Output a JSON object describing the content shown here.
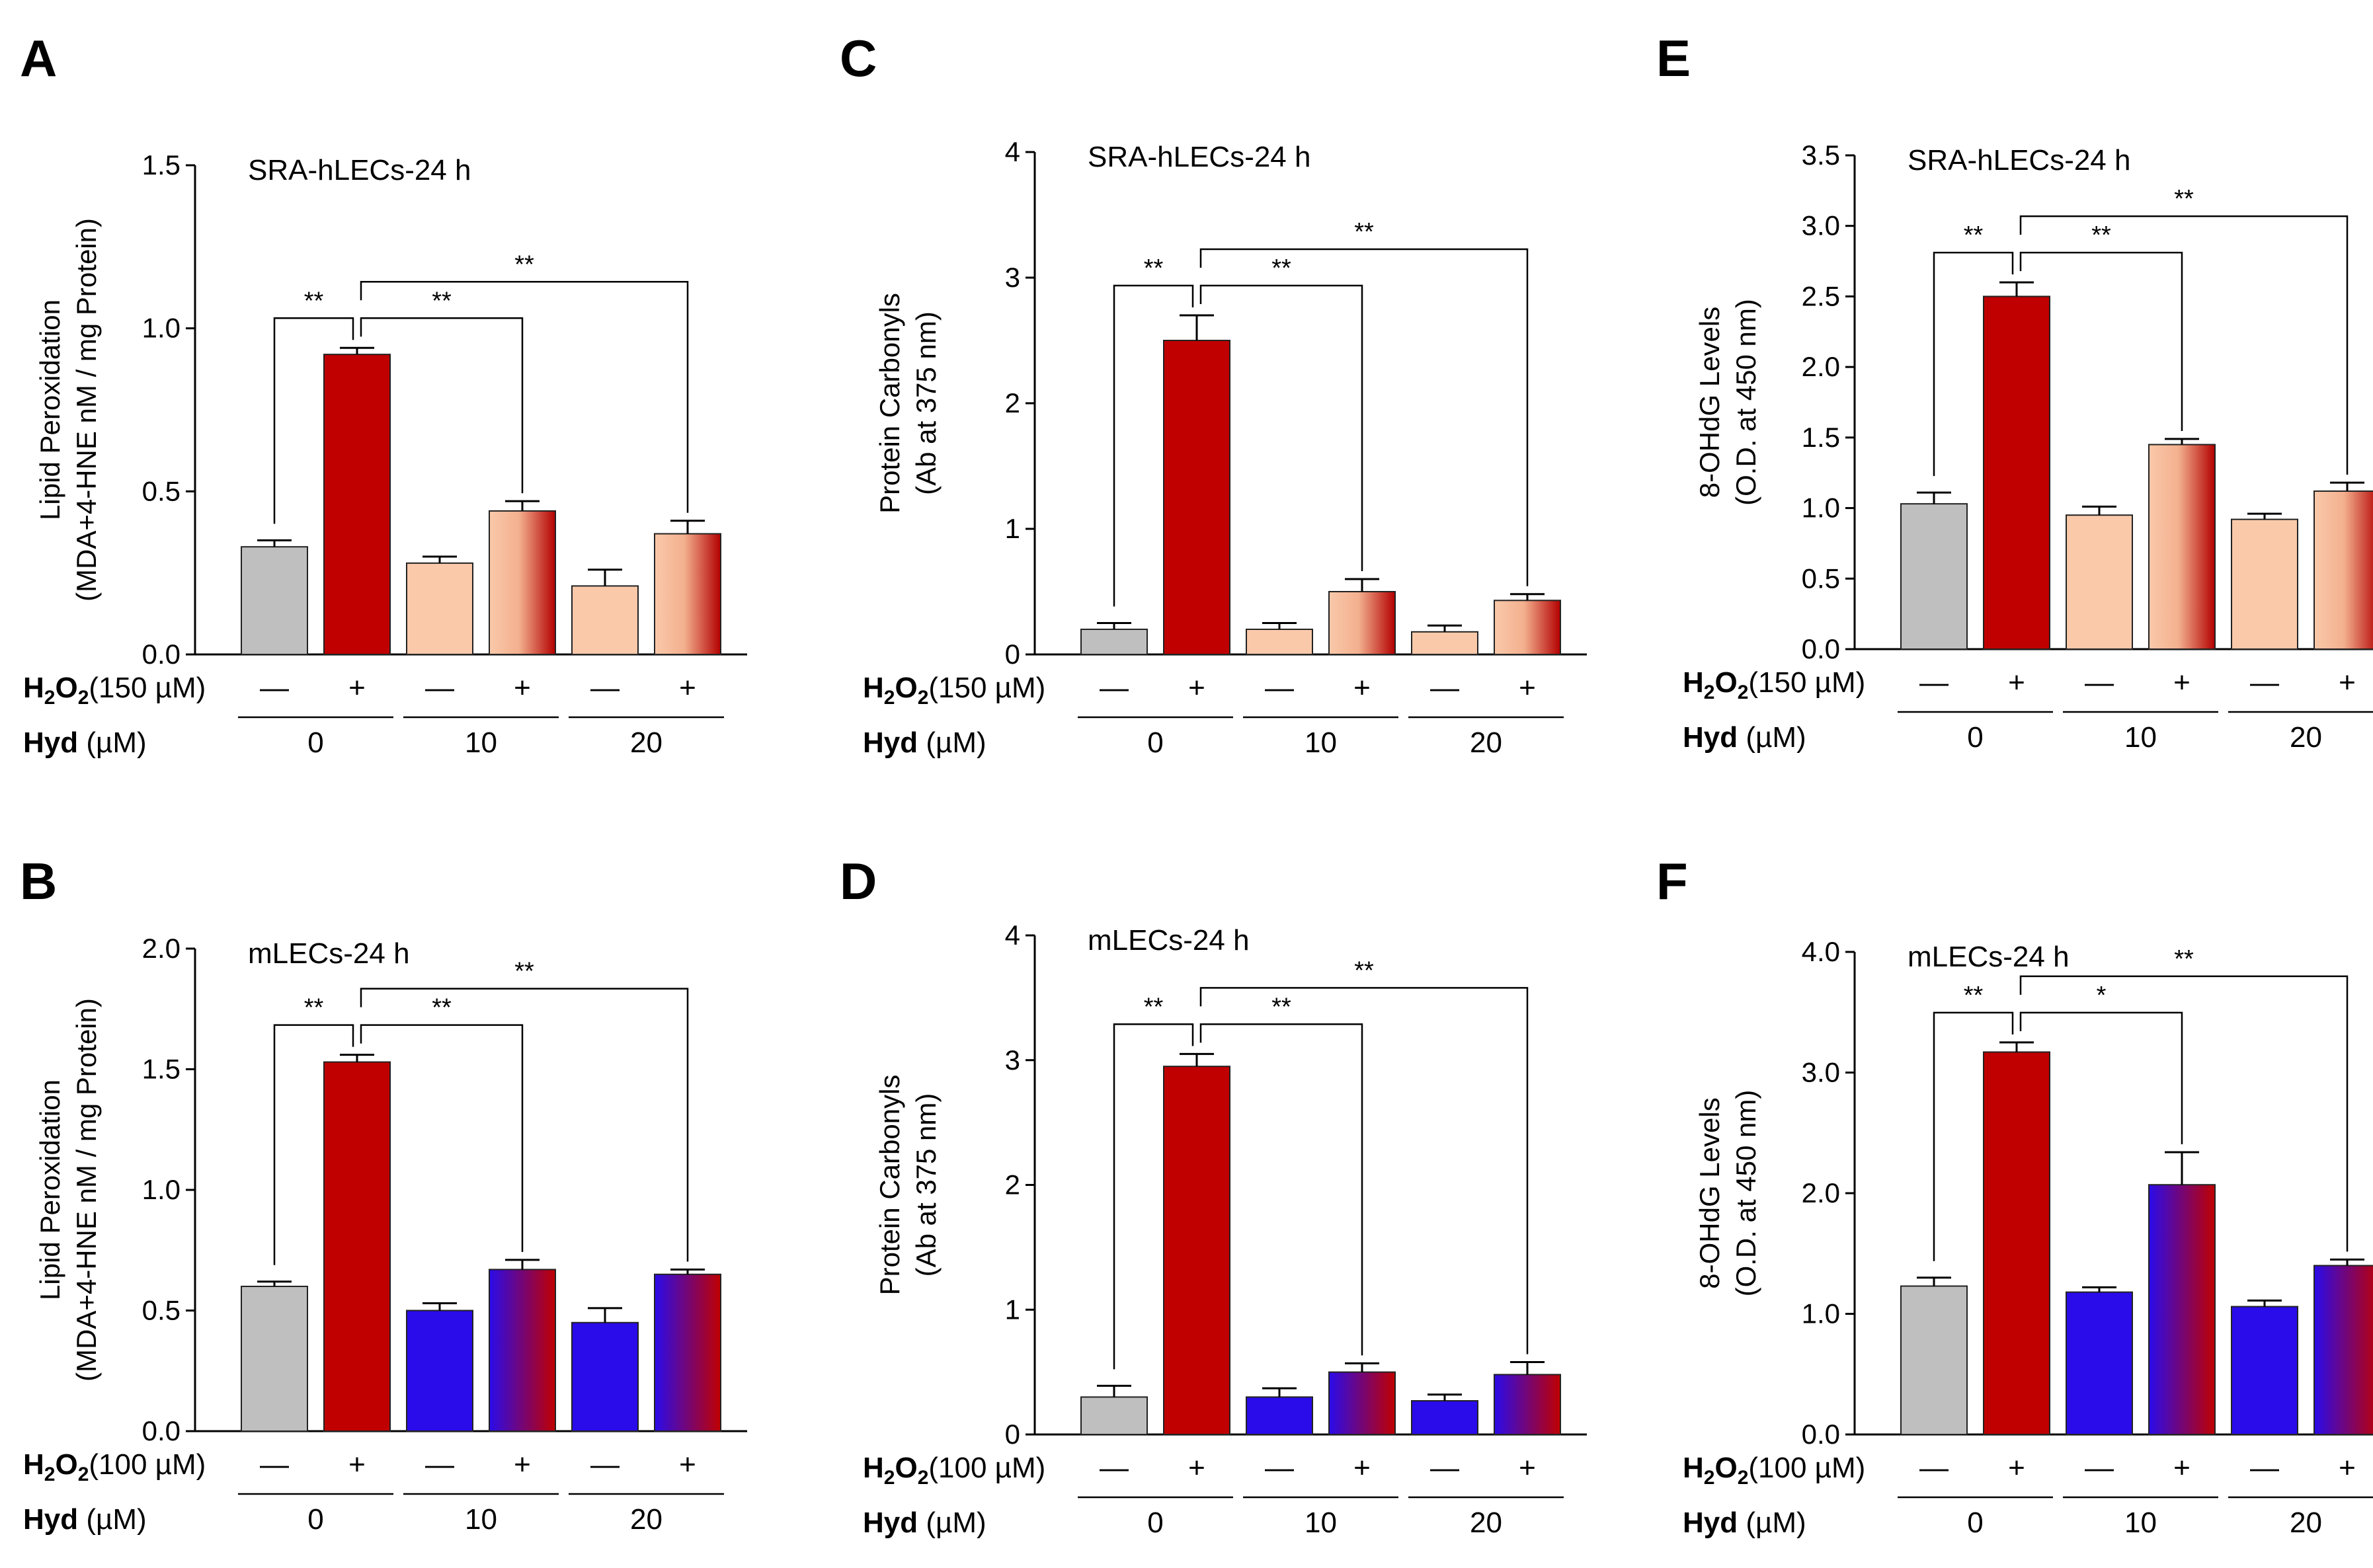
{
  "colors": {
    "gray": "#bfbfbf",
    "red": "#c00000",
    "peach": "#f9c9aa",
    "blue": "#2a0bea",
    "axis": "#000000"
  },
  "treatment_labels": {
    "h2o2_bold": "H",
    "h2o2_sub": "2",
    "h2o2_o": "O",
    "hyd_bold": "Hyd",
    "hyd_unit": "(µM)",
    "minus": "—",
    "plus": "+"
  },
  "chart_data": [
    {
      "id": "A",
      "type": "bar",
      "title": "SRA-hLECs-24 h",
      "ylabel": [
        "Lipid Peroxidation",
        "(MDA+4-HNE nM / mg Protein)"
      ],
      "ylim": [
        0,
        1.5
      ],
      "yticks": [
        "0.0",
        "0.5",
        "1.0",
        "1.5"
      ],
      "h2o2_dose": "(150 µM)",
      "hyd_doses": [
        "0",
        "10",
        "20"
      ],
      "h2o2": [
        "—",
        "+",
        "—",
        "+",
        "—",
        "+"
      ],
      "values": [
        0.33,
        0.92,
        0.28,
        0.44,
        0.21,
        0.37
      ],
      "errors": [
        0.02,
        0.02,
        0.02,
        0.03,
        0.05,
        0.04
      ],
      "fills": [
        "gray",
        "red",
        "peach",
        "grad-peach",
        "peach",
        "grad-peach"
      ],
      "significance": [
        {
          "from": 0,
          "to": 1,
          "label": "**"
        },
        {
          "from": 1,
          "to": 3,
          "label": "**"
        },
        {
          "from": 1,
          "to": 5,
          "label": "**"
        }
      ]
    },
    {
      "id": "C",
      "type": "bar",
      "title": "SRA-hLECs-24 h",
      "ylabel": [
        "Protein Carbonyls",
        "(Ab at 375 nm)"
      ],
      "ylim": [
        0,
        4
      ],
      "yticks": [
        "0",
        "1",
        "2",
        "3",
        "4"
      ],
      "h2o2_dose": "(150 µM)",
      "hyd_doses": [
        "0",
        "10",
        "20"
      ],
      "h2o2": [
        "—",
        "+",
        "—",
        "+",
        "—",
        "+"
      ],
      "values": [
        0.2,
        2.5,
        0.2,
        0.5,
        0.18,
        0.43
      ],
      "errors": [
        0.05,
        0.2,
        0.05,
        0.1,
        0.05,
        0.05
      ],
      "fills": [
        "gray",
        "red",
        "peach",
        "grad-peach",
        "peach",
        "grad-peach"
      ],
      "significance": [
        {
          "from": 0,
          "to": 1,
          "label": "**"
        },
        {
          "from": 1,
          "to": 3,
          "label": "**"
        },
        {
          "from": 1,
          "to": 5,
          "label": "**"
        }
      ]
    },
    {
      "id": "E",
      "type": "bar",
      "title": "SRA-hLECs-24 h",
      "ylabel": [
        "8-OHdG Levels",
        "(O.D. at 450 nm)"
      ],
      "ylim": [
        0,
        3.5
      ],
      "yticks": [
        "0.0",
        "0.5",
        "1.0",
        "1.5",
        "2.0",
        "2.5",
        "3.0",
        "3.5"
      ],
      "h2o2_dose": "(150 µM)",
      "hyd_doses": [
        "0",
        "10",
        "20"
      ],
      "h2o2": [
        "—",
        "+",
        "—",
        "+",
        "—",
        "+"
      ],
      "values": [
        1.03,
        2.5,
        0.95,
        1.45,
        0.92,
        1.12
      ],
      "errors": [
        0.08,
        0.1,
        0.06,
        0.04,
        0.04,
        0.06
      ],
      "fills": [
        "gray",
        "red",
        "peach",
        "grad-peach",
        "peach",
        "grad-peach"
      ],
      "significance": [
        {
          "from": 0,
          "to": 1,
          "label": "**"
        },
        {
          "from": 1,
          "to": 3,
          "label": "**"
        },
        {
          "from": 1,
          "to": 5,
          "label": "**"
        }
      ]
    },
    {
      "id": "B",
      "type": "bar",
      "title": "mLECs-24 h",
      "ylabel": [
        "Lipid Peroxidation",
        "(MDA+4-HNE nM / mg Protein)"
      ],
      "ylim": [
        0,
        2.0
      ],
      "yticks": [
        "0.0",
        "0.5",
        "1.0",
        "1.5",
        "2.0"
      ],
      "h2o2_dose": "(100 µM)",
      "hyd_doses": [
        "0",
        "10",
        "20"
      ],
      "h2o2": [
        "—",
        "+",
        "—",
        "+",
        "—",
        "+"
      ],
      "values": [
        0.6,
        1.53,
        0.5,
        0.67,
        0.45,
        0.65
      ],
      "errors": [
        0.02,
        0.03,
        0.03,
        0.04,
        0.06,
        0.02
      ],
      "fills": [
        "gray",
        "red",
        "blue",
        "grad-blue",
        "blue",
        "grad-blue"
      ],
      "significance": [
        {
          "from": 0,
          "to": 1,
          "label": "**"
        },
        {
          "from": 1,
          "to": 3,
          "label": "**"
        },
        {
          "from": 1,
          "to": 5,
          "label": "**"
        }
      ]
    },
    {
      "id": "D",
      "type": "bar",
      "title": "mLECs-24 h",
      "ylabel": [
        "Protein Carbonyls",
        "(Ab at 375 nm)"
      ],
      "ylim": [
        0,
        4
      ],
      "yticks": [
        "0",
        "1",
        "2",
        "3",
        "4"
      ],
      "h2o2_dose": "(100 µM)",
      "hyd_doses": [
        "0",
        "10",
        "20"
      ],
      "h2o2": [
        "—",
        "+",
        "—",
        "+",
        "—",
        "+"
      ],
      "values": [
        0.3,
        2.95,
        0.3,
        0.5,
        0.27,
        0.48
      ],
      "errors": [
        0.09,
        0.1,
        0.07,
        0.07,
        0.05,
        0.1
      ],
      "fills": [
        "gray",
        "red",
        "blue",
        "grad-blue",
        "blue",
        "grad-blue"
      ],
      "significance": [
        {
          "from": 0,
          "to": 1,
          "label": "**"
        },
        {
          "from": 1,
          "to": 3,
          "label": "**"
        },
        {
          "from": 1,
          "to": 5,
          "label": "**"
        }
      ]
    },
    {
      "id": "F",
      "type": "bar",
      "title": "mLECs-24 h",
      "ylabel": [
        "8-OHdG Levels",
        "(O.D. at 450 nm)"
      ],
      "ylim": [
        0,
        4.0
      ],
      "yticks": [
        "0.0",
        "1.0",
        "2.0",
        "3.0",
        "4.0"
      ],
      "h2o2_dose": "(100 µM)",
      "hyd_doses": [
        "0",
        "10",
        "20"
      ],
      "h2o2": [
        "—",
        "+",
        "—",
        "+",
        "—",
        "+"
      ],
      "values": [
        1.23,
        3.17,
        1.18,
        2.07,
        1.06,
        1.4
      ],
      "errors": [
        0.07,
        0.08,
        0.04,
        0.27,
        0.05,
        0.05
      ],
      "fills": [
        "gray",
        "red",
        "blue",
        "grad-blue",
        "blue",
        "grad-blue"
      ],
      "significance": [
        {
          "from": 0,
          "to": 1,
          "label": "**"
        },
        {
          "from": 1,
          "to": 3,
          "label": "*"
        },
        {
          "from": 1,
          "to": 5,
          "label": "**"
        }
      ]
    }
  ]
}
